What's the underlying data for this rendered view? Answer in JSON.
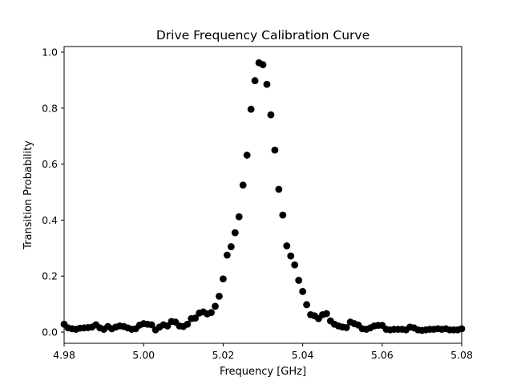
{
  "chart_data": {
    "type": "scatter",
    "title": "Drive Frequency Calibration Curve",
    "xlabel": "Frequency [GHz]",
    "ylabel": "Transition Probability",
    "xlim": [
      4.98,
      5.08
    ],
    "ylim": [
      -0.04,
      1.02
    ],
    "xticks": [
      4.98,
      5.0,
      5.02,
      5.04,
      5.06,
      5.08
    ],
    "xtick_labels": [
      "4.98",
      "5.00",
      "5.02",
      "5.04",
      "5.06",
      "5.08"
    ],
    "yticks": [
      0.0,
      0.2,
      0.4,
      0.6,
      0.8,
      1.0
    ],
    "ytick_labels": [
      "0.0",
      "0.2",
      "0.4",
      "0.6",
      "0.8",
      "1.0"
    ],
    "grid": false,
    "legend": "none",
    "marker_color": "#000000",
    "series": [
      {
        "x": [
          4.98,
          4.981,
          4.982,
          4.983,
          4.984,
          4.985,
          4.986,
          4.987,
          4.988,
          4.989,
          4.99,
          4.991,
          4.992,
          4.993,
          4.994,
          4.995,
          4.996,
          4.997,
          4.998,
          4.999,
          5.0,
          5.001,
          5.002,
          5.003,
          5.004,
          5.005,
          5.006,
          5.007,
          5.008,
          5.009,
          5.01,
          5.011,
          5.012,
          5.013,
          5.014,
          5.015,
          5.016,
          5.017,
          5.018,
          5.019,
          5.02,
          5.021,
          5.022,
          5.023,
          5.024,
          5.025,
          5.026,
          5.027,
          5.028,
          5.029,
          5.03,
          5.031,
          5.032,
          5.033,
          5.034,
          5.035,
          5.036,
          5.037,
          5.038,
          5.039,
          5.04,
          5.041,
          5.042,
          5.043,
          5.044,
          5.045,
          5.046,
          5.047,
          5.048,
          5.049,
          5.05,
          5.051,
          5.052,
          5.053,
          5.054,
          5.055,
          5.056,
          5.057,
          5.058,
          5.059,
          5.06,
          5.061,
          5.062,
          5.063,
          5.064,
          5.065,
          5.066,
          5.067,
          5.068,
          5.069,
          5.07,
          5.071,
          5.072,
          5.073,
          5.074,
          5.075,
          5.076,
          5.077,
          5.078,
          5.079,
          5.08
        ],
        "y": [
          0.028,
          0.015,
          0.012,
          0.01,
          0.014,
          0.015,
          0.016,
          0.018,
          0.026,
          0.015,
          0.01,
          0.02,
          0.012,
          0.018,
          0.022,
          0.02,
          0.015,
          0.01,
          0.012,
          0.025,
          0.03,
          0.028,
          0.026,
          0.008,
          0.018,
          0.026,
          0.022,
          0.038,
          0.036,
          0.022,
          0.02,
          0.028,
          0.048,
          0.05,
          0.068,
          0.072,
          0.065,
          0.07,
          0.092,
          0.128,
          0.19,
          0.275,
          0.305,
          0.355,
          0.412,
          0.525,
          0.632,
          0.796,
          0.898,
          0.962,
          0.955,
          0.885,
          0.776,
          0.65,
          0.51,
          0.418,
          0.308,
          0.272,
          0.24,
          0.185,
          0.145,
          0.098,
          0.062,
          0.058,
          0.048,
          0.062,
          0.066,
          0.04,
          0.028,
          0.022,
          0.018,
          0.016,
          0.036,
          0.03,
          0.025,
          0.012,
          0.01,
          0.015,
          0.022,
          0.024,
          0.024,
          0.01,
          0.008,
          0.01,
          0.01,
          0.01,
          0.008,
          0.018,
          0.015,
          0.008,
          0.006,
          0.008,
          0.01,
          0.01,
          0.012,
          0.01,
          0.012,
          0.008,
          0.008,
          0.008,
          0.012
        ]
      }
    ]
  }
}
